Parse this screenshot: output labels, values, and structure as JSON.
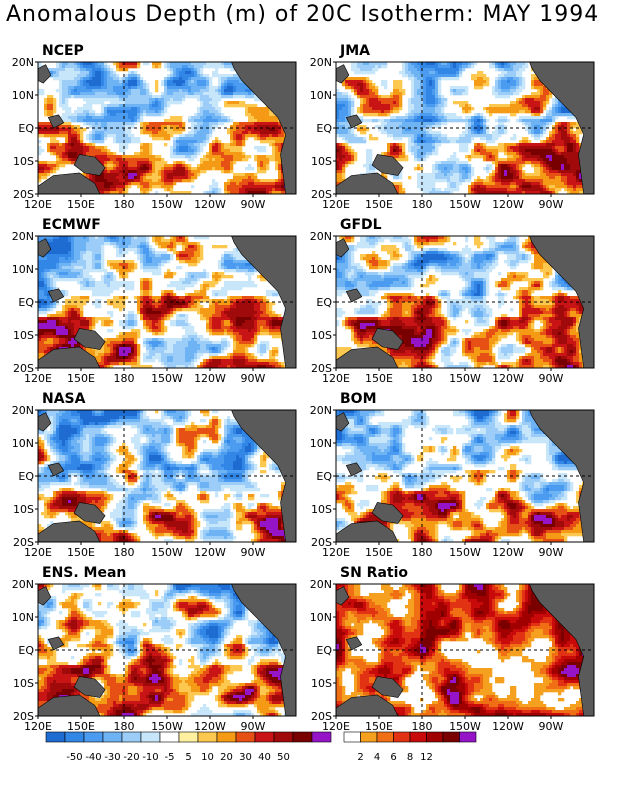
{
  "title": "Anomalous Depth (m) of 20C Isotherm: MAY 1994",
  "lat_labels": [
    "20N",
    "10N",
    "EQ",
    "10S",
    "20S"
  ],
  "lon_labels": [
    "120E",
    "150E",
    "180",
    "150W",
    "120W",
    "90W"
  ],
  "panels": [
    {
      "name": "NCEP"
    },
    {
      "name": "JMA"
    },
    {
      "name": "ECMWF"
    },
    {
      "name": "GFDL"
    },
    {
      "name": "NASA"
    },
    {
      "name": "BOM"
    },
    {
      "name": "ENS. Mean"
    },
    {
      "name": "SN Ratio"
    }
  ],
  "colorbar_anomaly": {
    "labels": [
      "-50",
      "-40",
      "-30",
      "-20",
      "-10",
      "-5",
      "5",
      "10",
      "20",
      "30",
      "40",
      "50"
    ],
    "colors": [
      "#1e6cd2",
      "#3287e6",
      "#4b9bf0",
      "#6eb4f5",
      "#9bcdf8",
      "#c8e6fa",
      "#ffffff",
      "#fff0a0",
      "#fdc850",
      "#f59a14",
      "#e65014",
      "#c81414",
      "#a00a0a",
      "#780000",
      "#9614c8"
    ]
  },
  "colorbar_ratio": {
    "labels": [
      "2",
      "4",
      "6",
      "8",
      "12"
    ],
    "colors": [
      "#ffffff",
      "#f5a01e",
      "#f06e14",
      "#e13214",
      "#c80a0a",
      "#a00000",
      "#7a0000",
      "#9614c8"
    ]
  },
  "colors": {
    "land": "#5a5a5a",
    "frame": "#000000"
  }
}
